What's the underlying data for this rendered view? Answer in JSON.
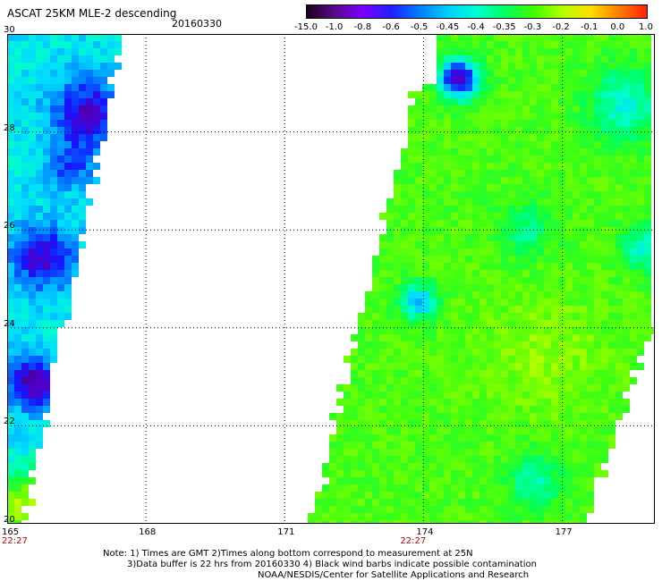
{
  "header": {
    "title": "ASCAT 25KM MLE-2 descending",
    "date": "20160330"
  },
  "colorbar": {
    "ticks": [
      "-15.0",
      "-1.0",
      "-0.8",
      "-0.6",
      "-0.5",
      "-0.45",
      "-0.4",
      "-0.35",
      "-0.3",
      "-0.2",
      "-0.1",
      "0.0",
      "1.0"
    ],
    "colors": [
      "#1a001a",
      "#5a0a8a",
      "#7a00ff",
      "#2020ff",
      "#0080ff",
      "#00d0ff",
      "#00ffd0",
      "#00ff60",
      "#40ff00",
      "#b0ff00",
      "#ffe000",
      "#ff8000",
      "#ff2000"
    ]
  },
  "map": {
    "lat_labels": [
      "30",
      "28",
      "26",
      "24",
      "22",
      "20"
    ],
    "lon_labels": [
      "165",
      "168",
      "171",
      "174",
      "177"
    ],
    "time_labels": [
      "22:27",
      "22:27"
    ],
    "lat_range": [
      20,
      30
    ],
    "lon_range": [
      165,
      179
    ]
  },
  "footer": {
    "line1": "Note: 1) Times are GMT 2)Times along bottom correspond to measurement at 25N",
    "line2": "3)Data buffer is 22 hrs from 20160330 4) Black wind barbs indicate possible contamination",
    "line3": "NOAA/NESDIS/Center for Satellite Applications and Research"
  }
}
